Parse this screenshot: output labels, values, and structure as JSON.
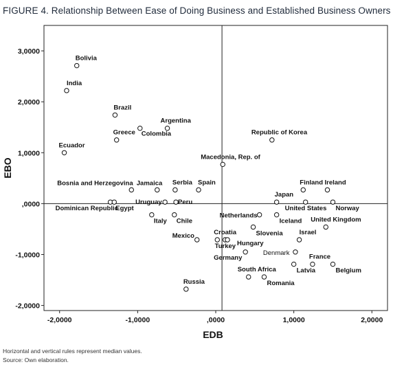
{
  "title": "FIGURE 4. Relationship Between Ease of Doing Business and Established Business Owners",
  "footnotes": {
    "line1": "Horizontal and vertical rules represent median values.",
    "line2": "Source: Own elaboration."
  },
  "chart_data": {
    "type": "scatter",
    "xlabel": "EDB",
    "ylabel": "EBO",
    "xlim": [
      -2.2,
      2.2
    ],
    "ylim": [
      -2.1,
      3.5
    ],
    "xticks": [
      -2,
      -1,
      0,
      1,
      2
    ],
    "xtick_labels": [
      "-2,0000",
      "-1,0000",
      ",0000",
      "1,0000",
      "2,0000"
    ],
    "yticks": [
      3,
      2,
      1,
      0,
      -1,
      -2
    ],
    "ytick_labels": [
      "3,0000",
      "2,0000",
      "1,0000",
      ",0000",
      "-1,0000",
      "-2,0000"
    ],
    "reference_lines": {
      "x": 0.08,
      "y": 0.0
    },
    "grid": false,
    "points": [
      {
        "label": "Bolivia",
        "x": -1.78,
        "y": 2.71
      },
      {
        "label": "India",
        "x": -1.91,
        "y": 2.22
      },
      {
        "label": "Brazil",
        "x": -1.29,
        "y": 1.74
      },
      {
        "label": "Argentina",
        "x": -0.62,
        "y": 1.48
      },
      {
        "label": "Colombia",
        "x": -0.97,
        "y": 1.48
      },
      {
        "label": "Greece",
        "x": -1.27,
        "y": 1.25
      },
      {
        "label": "Ecuador",
        "x": -1.94,
        "y": 1.0
      },
      {
        "label": "Republic of Korea",
        "x": 0.72,
        "y": 1.25
      },
      {
        "label": "Macedonia, Rep. of",
        "x": 0.09,
        "y": 0.77
      },
      {
        "label": "Bosnia and Herzegovina",
        "x": -1.08,
        "y": 0.27
      },
      {
        "label": "Jamaica",
        "x": -0.75,
        "y": 0.27
      },
      {
        "label": "Serbia",
        "x": -0.52,
        "y": 0.27
      },
      {
        "label": "Spain",
        "x": -0.22,
        "y": 0.27
      },
      {
        "label": "Finland",
        "x": 1.12,
        "y": 0.27
      },
      {
        "label": "Ireland",
        "x": 1.43,
        "y": 0.27
      },
      {
        "label": "Japan",
        "x": 0.78,
        "y": 0.03
      },
      {
        "label": "Dominican Republic",
        "x": -1.35,
        "y": 0.03
      },
      {
        "label": "Egypt",
        "x": -1.3,
        "y": 0.03
      },
      {
        "label": "Uruguay",
        "x": -0.65,
        "y": 0.03
      },
      {
        "label": "Peru",
        "x": -0.51,
        "y": 0.03
      },
      {
        "label": "United States",
        "x": 1.15,
        "y": 0.03
      },
      {
        "label": "Norway",
        "x": 1.5,
        "y": 0.03
      },
      {
        "label": "Italy",
        "x": -0.82,
        "y": -0.22
      },
      {
        "label": "Chile",
        "x": -0.53,
        "y": -0.22
      },
      {
        "label": "Netherlands",
        "x": 0.56,
        "y": -0.22
      },
      {
        "label": "Iceland",
        "x": 0.78,
        "y": -0.22
      },
      {
        "label": "United Kingdom",
        "x": 1.41,
        "y": -0.46
      },
      {
        "label": "Slovenia",
        "x": 0.48,
        "y": -0.46
      },
      {
        "label": "Mexico",
        "x": -0.24,
        "y": -0.71
      },
      {
        "label": "Croatia",
        "x": 0.02,
        "y": -0.71
      },
      {
        "label": "Turkey",
        "x": 0.12,
        "y": -0.71
      },
      {
        "label": "Hungary",
        "x": 0.15,
        "y": -0.71
      },
      {
        "label": "Israel",
        "x": 1.07,
        "y": -0.71
      },
      {
        "label": "Germany",
        "x": 0.38,
        "y": -0.95
      },
      {
        "label": "Denmark",
        "x": 1.02,
        "y": -0.95
      },
      {
        "label": "France",
        "x": 1.24,
        "y": -1.19
      },
      {
        "label": "Latvia",
        "x": 1.0,
        "y": -1.19
      },
      {
        "label": "Belgium",
        "x": 1.5,
        "y": -1.19
      },
      {
        "label": "South Africa",
        "x": 0.42,
        "y": -1.44
      },
      {
        "label": "Romania",
        "x": 0.62,
        "y": -1.44
      },
      {
        "label": "Russia",
        "x": -0.38,
        "y": -1.68
      }
    ]
  }
}
